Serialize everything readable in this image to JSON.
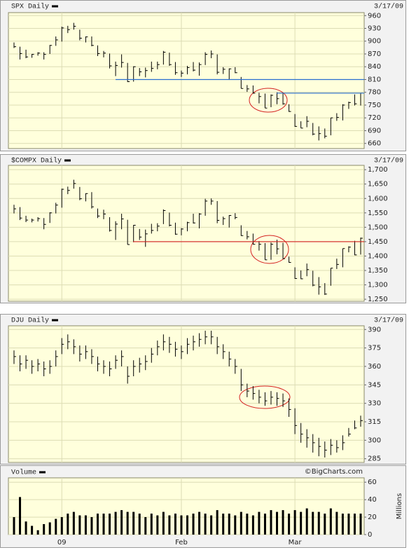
{
  "chart_data": [
    {
      "type": "ohlc",
      "title": "SPX Daily",
      "date": "3/17/09",
      "color": "#000000",
      "ylim": [
        648,
        967
      ],
      "yticks": [
        660,
        690,
        720,
        750,
        780,
        810,
        840,
        870,
        900,
        930,
        960
      ],
      "high": [
        897,
        887,
        880,
        870,
        874,
        874,
        891,
        911,
        934,
        936,
        943,
        927,
        911,
        911,
        890,
        877,
        871,
        852,
        869,
        849,
        841,
        837,
        838,
        852,
        852,
        877,
        873,
        851,
        831,
        842,
        851,
        850,
        874,
        878,
        869,
        839,
        836,
        839,
        816,
        797,
        796,
        779,
        777,
        775,
        780,
        779,
        752,
        729,
        712,
        724,
        708,
        700,
        695,
        720,
        731,
        752,
        758,
        775,
        778
      ],
      "low": [
        884,
        857,
        860,
        861,
        866,
        857,
        870,
        889,
        899,
        919,
        927,
        902,
        897,
        888,
        865,
        862,
        836,
        818,
        838,
        804,
        805,
        818,
        815,
        828,
        834,
        845,
        842,
        821,
        816,
        822,
        829,
        819,
        844,
        860,
        822,
        823,
        809,
        825,
        789,
        781,
        777,
        754,
        743,
        745,
        752,
        751,
        734,
        699,
        696,
        698,
        679,
        667,
        672,
        679,
        713,
        714,
        741,
        749,
        749
      ],
      "close": [
        887,
        871,
        863,
        869,
        872,
        869,
        890,
        903,
        931,
        927,
        935,
        907,
        910,
        890,
        871,
        872,
        842,
        843,
        850,
        805,
        840,
        828,
        831,
        836,
        845,
        874,
        845,
        826,
        825,
        838,
        832,
        845,
        869,
        870,
        827,
        834,
        835,
        826,
        789,
        788,
        778,
        770,
        743,
        773,
        765,
        753,
        735,
        700,
        696,
        712,
        682,
        683,
        677,
        720,
        721,
        750,
        756,
        753,
        778
      ],
      "lines": [
        {
          "value": 810,
          "color": "#2a6fd0"
        },
        {
          "value": 778,
          "color": "#2a6fd0"
        }
      ]
    },
    {
      "type": "ohlc",
      "title": "$COMPX Daily",
      "date": "3/17/09",
      "color": "#000000",
      "ylim": [
        1243,
        1715
      ],
      "yticks": [
        {
          "value": 1250,
          "label": "1,250"
        },
        {
          "value": 1300,
          "label": "1,300"
        },
        {
          "value": 1350,
          "label": "1,350"
        },
        {
          "value": 1400,
          "label": "1,400"
        },
        {
          "value": 1450,
          "label": "1,450"
        },
        {
          "value": 1500,
          "label": "1,500"
        },
        {
          "value": 1550,
          "label": "1,550"
        },
        {
          "value": 1600,
          "label": "1,600"
        },
        {
          "value": 1650,
          "label": "1,650"
        },
        {
          "value": 1700,
          "label": "1,700"
        }
      ],
      "high": [
        1578,
        1570,
        1540,
        1530,
        1535,
        1532,
        1552,
        1585,
        1634,
        1641,
        1665,
        1640,
        1618,
        1622,
        1565,
        1561,
        1535,
        1521,
        1547,
        1526,
        1508,
        1494,
        1492,
        1512,
        1514,
        1562,
        1551,
        1516,
        1497,
        1519,
        1547,
        1549,
        1599,
        1600,
        1591,
        1537,
        1542,
        1549,
        1507,
        1487,
        1478,
        1452,
        1445,
        1447,
        1457,
        1446,
        1398,
        1361,
        1350,
        1374,
        1349,
        1327,
        1306,
        1358,
        1391,
        1426,
        1434,
        1453,
        1464
      ],
      "low": [
        1548,
        1525,
        1518,
        1517,
        1520,
        1493,
        1515,
        1548,
        1568,
        1615,
        1634,
        1594,
        1590,
        1565,
        1532,
        1528,
        1485,
        1456,
        1493,
        1440,
        1448,
        1456,
        1432,
        1478,
        1486,
        1511,
        1503,
        1474,
        1472,
        1486,
        1513,
        1496,
        1540,
        1578,
        1514,
        1508,
        1499,
        1528,
        1470,
        1458,
        1440,
        1419,
        1387,
        1387,
        1406,
        1390,
        1377,
        1321,
        1320,
        1330,
        1295,
        1266,
        1265,
        1297,
        1355,
        1361,
        1413,
        1403,
        1405
      ],
      "close": [
        1564,
        1532,
        1525,
        1525,
        1530,
        1510,
        1550,
        1577,
        1632,
        1628,
        1652,
        1599,
        1617,
        1571,
        1539,
        1546,
        1489,
        1511,
        1529,
        1440,
        1507,
        1466,
        1477,
        1489,
        1504,
        1558,
        1507,
        1476,
        1494,
        1516,
        1515,
        1546,
        1591,
        1591,
        1524,
        1530,
        1541,
        1534,
        1471,
        1467,
        1441,
        1441,
        1387,
        1441,
        1425,
        1391,
        1378,
        1322,
        1321,
        1353,
        1299,
        1293,
        1268,
        1358,
        1371,
        1426,
        1431,
        1404,
        1462
      ],
      "lines": [
        {
          "value": 1450,
          "color": "#d42020"
        }
      ]
    },
    {
      "type": "ohlc",
      "title": "DJU Daily",
      "date": "3/17/09",
      "color": "#000000",
      "ylim": [
        282,
        393
      ],
      "yticks": [
        285,
        300,
        315,
        330,
        345,
        360,
        375,
        390
      ],
      "high": [
        373,
        369,
        369,
        365,
        366,
        364,
        365,
        373,
        383,
        386,
        382,
        377,
        377,
        374,
        368,
        365,
        364,
        369,
        373,
        360,
        365,
        367,
        369,
        375,
        381,
        386,
        384,
        380,
        377,
        383,
        385,
        387,
        389,
        389,
        384,
        378,
        372,
        366,
        358,
        346,
        344,
        341,
        339,
        340,
        339,
        338,
        334,
        326,
        314,
        309,
        305,
        302,
        299,
        301,
        300,
        304,
        310,
        316,
        320
      ],
      "low": [
        362,
        356,
        358,
        354,
        356,
        352,
        354,
        360,
        370,
        374,
        370,
        364,
        366,
        362,
        356,
        354,
        352,
        358,
        360,
        346,
        352,
        355,
        357,
        363,
        369,
        373,
        371,
        368,
        366,
        370,
        373,
        376,
        378,
        378,
        370,
        366,
        360,
        354,
        340,
        335,
        333,
        330,
        328,
        329,
        328,
        327,
        319,
        305,
        298,
        294,
        290,
        287,
        286,
        288,
        290,
        292,
        303,
        309,
        311
      ],
      "close": [
        368,
        362,
        365,
        360,
        362,
        358,
        360,
        368,
        378,
        380,
        376,
        370,
        372,
        368,
        362,
        360,
        358,
        365,
        368,
        352,
        360,
        362,
        364,
        370,
        376,
        380,
        378,
        374,
        372,
        378,
        380,
        382,
        384,
        384,
        376,
        372,
        366,
        360,
        345,
        340,
        338,
        335,
        332,
        335,
        334,
        332,
        325,
        312,
        305,
        302,
        298,
        295,
        292,
        296,
        294,
        298,
        305,
        310,
        316
      ]
    },
    {
      "type": "volume",
      "title": "Volume",
      "color": "#000000",
      "unit": "Millions",
      "source": "©BigCharts.com",
      "ylim": [
        0,
        65
      ],
      "yticks": [
        0,
        20,
        40,
        60
      ],
      "categories": [
        null,
        null,
        null,
        null,
        null,
        null,
        null,
        null,
        "09",
        null,
        null,
        null,
        null,
        null,
        null,
        null,
        null,
        null,
        null,
        null,
        null,
        null,
        null,
        null,
        null,
        null,
        null,
        null,
        "Feb",
        null,
        null,
        null,
        null,
        null,
        null,
        null,
        null,
        null,
        null,
        null,
        null,
        null,
        null,
        null,
        null,
        null,
        null,
        "Mar",
        null,
        null,
        null,
        null,
        null,
        null,
        null,
        null,
        null,
        null,
        null
      ],
      "values": [
        20,
        43,
        15,
        10,
        5,
        12,
        14,
        18,
        20,
        24,
        26,
        22,
        22,
        20,
        24,
        24,
        24,
        26,
        28,
        26,
        26,
        24,
        20,
        24,
        22,
        26,
        22,
        24,
        22,
        22,
        24,
        26,
        24,
        22,
        28,
        24,
        24,
        22,
        26,
        24,
        22,
        26,
        24,
        28,
        26,
        28,
        24,
        28,
        26,
        30,
        26,
        26,
        24,
        30,
        26,
        24,
        24,
        24,
        24
      ]
    }
  ]
}
